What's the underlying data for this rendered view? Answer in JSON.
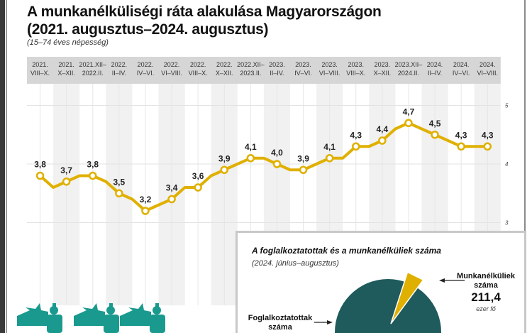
{
  "title_line1": "A munkanélküliségi ráta alakulása Magyarországon",
  "title_line2": "(2021. augusztus–2024. augusztus)",
  "subtitle": "(15–74 éves népesség)",
  "colors": {
    "line": "#e0b000",
    "pie_main": "#1f5a5c",
    "pie_slice": "#e0b000",
    "header_band": "#d6d6d6",
    "shaded_column": "#f1f1f1",
    "figures": "#1a9a8f"
  },
  "chart_data": [
    {
      "type": "line",
      "title": "A munkanélküliségi ráta alakulása Magyarországon (2021. augusztus–2024. augusztus)",
      "categories": [
        [
          "2021.",
          "VIII–X."
        ],
        [
          "2021.",
          "X–XII."
        ],
        [
          "2021.XII–",
          "2022.II."
        ],
        [
          "2022.",
          "II–IV."
        ],
        [
          "2022.",
          "IV–VI."
        ],
        [
          "2022.",
          "VI–VIII."
        ],
        [
          "2022.",
          "VIII–X."
        ],
        [
          "2022.",
          "X–XII."
        ],
        [
          "2022.XII–",
          "2023.II."
        ],
        [
          "2023.",
          "II–IV."
        ],
        [
          "2023.",
          "IV–VI."
        ],
        [
          "2023.",
          "VI–VIII."
        ],
        [
          "2023.",
          "VIII–X."
        ],
        [
          "2023.",
          "X–XII."
        ],
        [
          "2023.XII–",
          "2024.II."
        ],
        [
          "2024.",
          "II–IV."
        ],
        [
          "2024.",
          "IV–VI."
        ],
        [
          "2024.",
          "VI–VIII."
        ]
      ],
      "values": [
        3.8,
        3.7,
        3.8,
        3.5,
        3.2,
        3.4,
        3.6,
        3.9,
        4.1,
        4.0,
        3.9,
        4.1,
        4.3,
        4.4,
        4.7,
        4.5,
        4.3,
        4.3
      ],
      "labels": [
        "3,8",
        "3,7",
        "3,8",
        "3,5",
        "3,2",
        "3,4",
        "3,6",
        "3,9",
        "4,1",
        "4,0",
        "3,9",
        "4,1",
        "4,3",
        "4,4",
        "4,7",
        "4,5",
        "4,3",
        "4,3"
      ],
      "intermediate_values": [
        3.6,
        3.8,
        3.7,
        3.4,
        3.3,
        3.6,
        3.8,
        4.0,
        4.1,
        3.9,
        4.0,
        4.1,
        4.3,
        4.6,
        4.6,
        4.4,
        4.3
      ],
      "ylim": [
        3,
        5
      ],
      "yticks": [
        "5",
        "4",
        "3"
      ],
      "ytick_values": [
        5,
        4,
        3
      ],
      "y_axis_side": "right",
      "grid": true
    },
    {
      "type": "pie",
      "title": "A foglalkoztatottak és a munkanélküliek száma",
      "subtitle": "(2024. június–augusztus)",
      "slices": [
        {
          "name": "Foglalkoztatottak száma",
          "value": null
        },
        {
          "name": "Munkanélküliek száma",
          "value": 211.4,
          "value_label": "211,4",
          "unit": "ezer fő"
        }
      ]
    }
  ],
  "inset": {
    "title": "A foglalkoztatottak és a munkanélküliek száma",
    "subtitle": "(2024. június–augusztus)",
    "unemployed_label": "Munkanélküliek száma",
    "unemployed_value": "211,4",
    "unemployed_unit": "ezer fő",
    "employed_label": "Foglalkoztatottak száma"
  }
}
